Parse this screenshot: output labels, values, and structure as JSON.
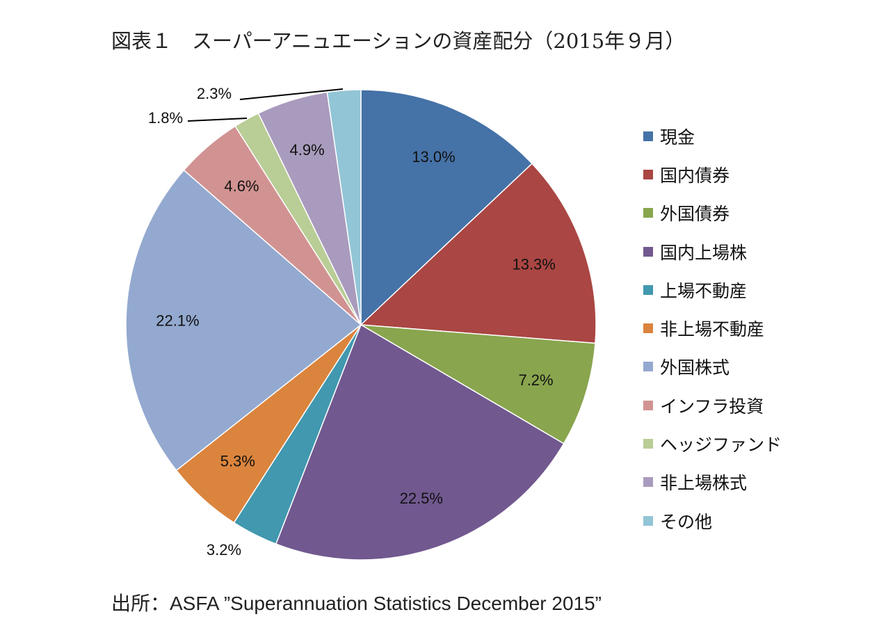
{
  "title": "図表１　スーパーアニュエーションの資産配分（2015年９月）",
  "source": "出所：ASFA ”Superannuation Statistics December 2015”",
  "chart_data": {
    "type": "pie",
    "title": "図表１　スーパーアニュエーションの資産配分（2015年９月）",
    "categories": [
      "現金",
      "国内債券",
      "外国債券",
      "国内上場株",
      "上場不動産",
      "非上場不動産",
      "外国株式",
      "インフラ投資",
      "ヘッジファンド",
      "非上場株式",
      "その他"
    ],
    "values": [
      13.0,
      13.3,
      7.2,
      22.5,
      3.2,
      5.3,
      22.1,
      4.6,
      1.8,
      4.9,
      2.3
    ],
    "labels": [
      "13.0%",
      "13.3%",
      "7.2%",
      "22.5%",
      "3.2%",
      "5.3%",
      "22.1%",
      "4.6%",
      "1.8%",
      "4.9%",
      "2.3%"
    ],
    "colors": [
      "#4572A7",
      "#AA4643",
      "#89A54E",
      "#71588F",
      "#4198AF",
      "#DB843D",
      "#93A9CF",
      "#D19392",
      "#B9CD96",
      "#A99BBD",
      "#92C5D6"
    ],
    "legend_position": "right"
  }
}
